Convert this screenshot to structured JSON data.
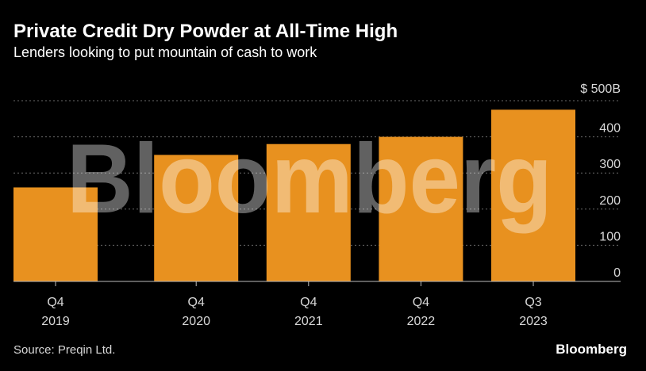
{
  "header": {
    "title": "Private Credit Dry Powder at All-Time High",
    "subtitle": "Lenders looking to put mountain of cash to work"
  },
  "footer": {
    "source": "Source: Preqin Ltd.",
    "brand": "Bloomberg"
  },
  "watermark": "Bloomberg",
  "colors": {
    "bar": "#e8911f",
    "grid": "#6a6a6a",
    "axis": "#bdbdbd",
    "text": "#ffffff",
    "tick_text": "#d8d8d8",
    "watermark": "#ffffff"
  },
  "chart_data": {
    "type": "bar",
    "categories": [
      [
        "Q4",
        "2019"
      ],
      [
        "Q4",
        "2020"
      ],
      [
        "Q4",
        "2021"
      ],
      [
        "Q4",
        "2022"
      ],
      [
        "Q3",
        "2023"
      ]
    ],
    "values": [
      260,
      350,
      380,
      400,
      475
    ],
    "ylim": [
      0,
      500
    ],
    "yticks": [
      0,
      100,
      200,
      300,
      400,
      500
    ],
    "ytick_labels": [
      "0",
      "100",
      "200",
      "300",
      "400",
      "$ 500B"
    ],
    "y_axis_side": "right",
    "grid": true,
    "title": "Private Credit Dry Powder at All-Time High",
    "subtitle": "Lenders looking to put mountain of cash to work"
  }
}
